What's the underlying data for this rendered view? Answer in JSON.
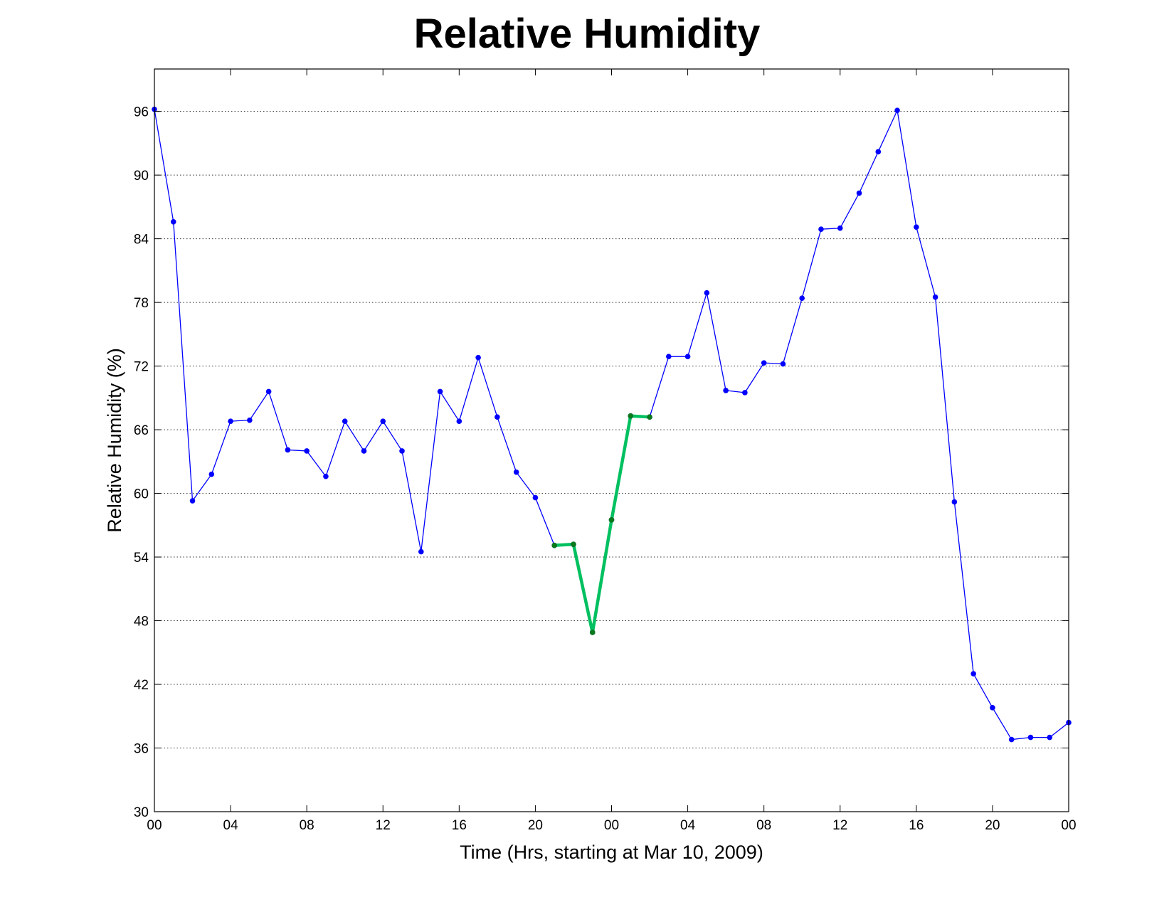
{
  "chart_data": {
    "type": "line",
    "title": "Relative Humidity",
    "xlabel": "Time (Hrs, starting at Mar 10, 2009)",
    "ylabel": "Relative Humidity (%)",
    "xlim": [
      0,
      48
    ],
    "ylim": [
      30,
      100
    ],
    "x_ticks": [
      0,
      4,
      8,
      12,
      16,
      20,
      24,
      28,
      32,
      36,
      40,
      44,
      48
    ],
    "x_tick_labels": [
      "00",
      "04",
      "08",
      "12",
      "16",
      "20",
      "00",
      "04",
      "08",
      "12",
      "16",
      "20",
      "00"
    ],
    "y_ticks": [
      30,
      36,
      42,
      48,
      54,
      60,
      66,
      72,
      78,
      84,
      90,
      96
    ],
    "y_tick_labels": [
      "30",
      "36",
      "42",
      "48",
      "54",
      "60",
      "66",
      "72",
      "78",
      "84",
      "90",
      "96"
    ],
    "grid": "horizontal dotted",
    "series": [
      {
        "color": "#0000ff",
        "x": [
          0,
          1,
          2,
          3,
          4,
          5,
          6,
          7,
          8,
          9,
          10,
          11,
          12,
          13,
          14,
          15,
          16,
          17,
          18,
          19,
          20,
          21,
          22,
          23,
          24,
          25,
          26,
          27,
          28,
          29,
          30,
          31,
          32,
          33,
          34,
          35,
          36,
          37,
          38,
          39,
          40,
          41,
          42,
          43,
          44,
          45,
          46,
          47,
          48
        ],
        "y": [
          96.2,
          85.6,
          59.3,
          61.8,
          66.8,
          66.9,
          69.6,
          64.1,
          64.0,
          61.6,
          66.8,
          64.0,
          66.8,
          64.0,
          54.5,
          69.6,
          66.8,
          72.8,
          67.2,
          62.0,
          59.6,
          55.1,
          55.2,
          46.9,
          57.5,
          67.3,
          67.2,
          72.9,
          72.9,
          78.9,
          69.7,
          69.5,
          72.3,
          72.2,
          78.4,
          84.9,
          85.0,
          88.3,
          92.2,
          96.1,
          85.1,
          78.5,
          59.2,
          43.0,
          39.8,
          36.8,
          37.0,
          37.0,
          38.4
        ]
      },
      {
        "color": "#00c060",
        "marker_color": "#0a7a1a",
        "x": [
          21,
          22,
          23,
          24,
          25,
          26
        ],
        "y": [
          55.1,
          55.2,
          46.9,
          57.5,
          67.3,
          67.2
        ]
      }
    ]
  }
}
